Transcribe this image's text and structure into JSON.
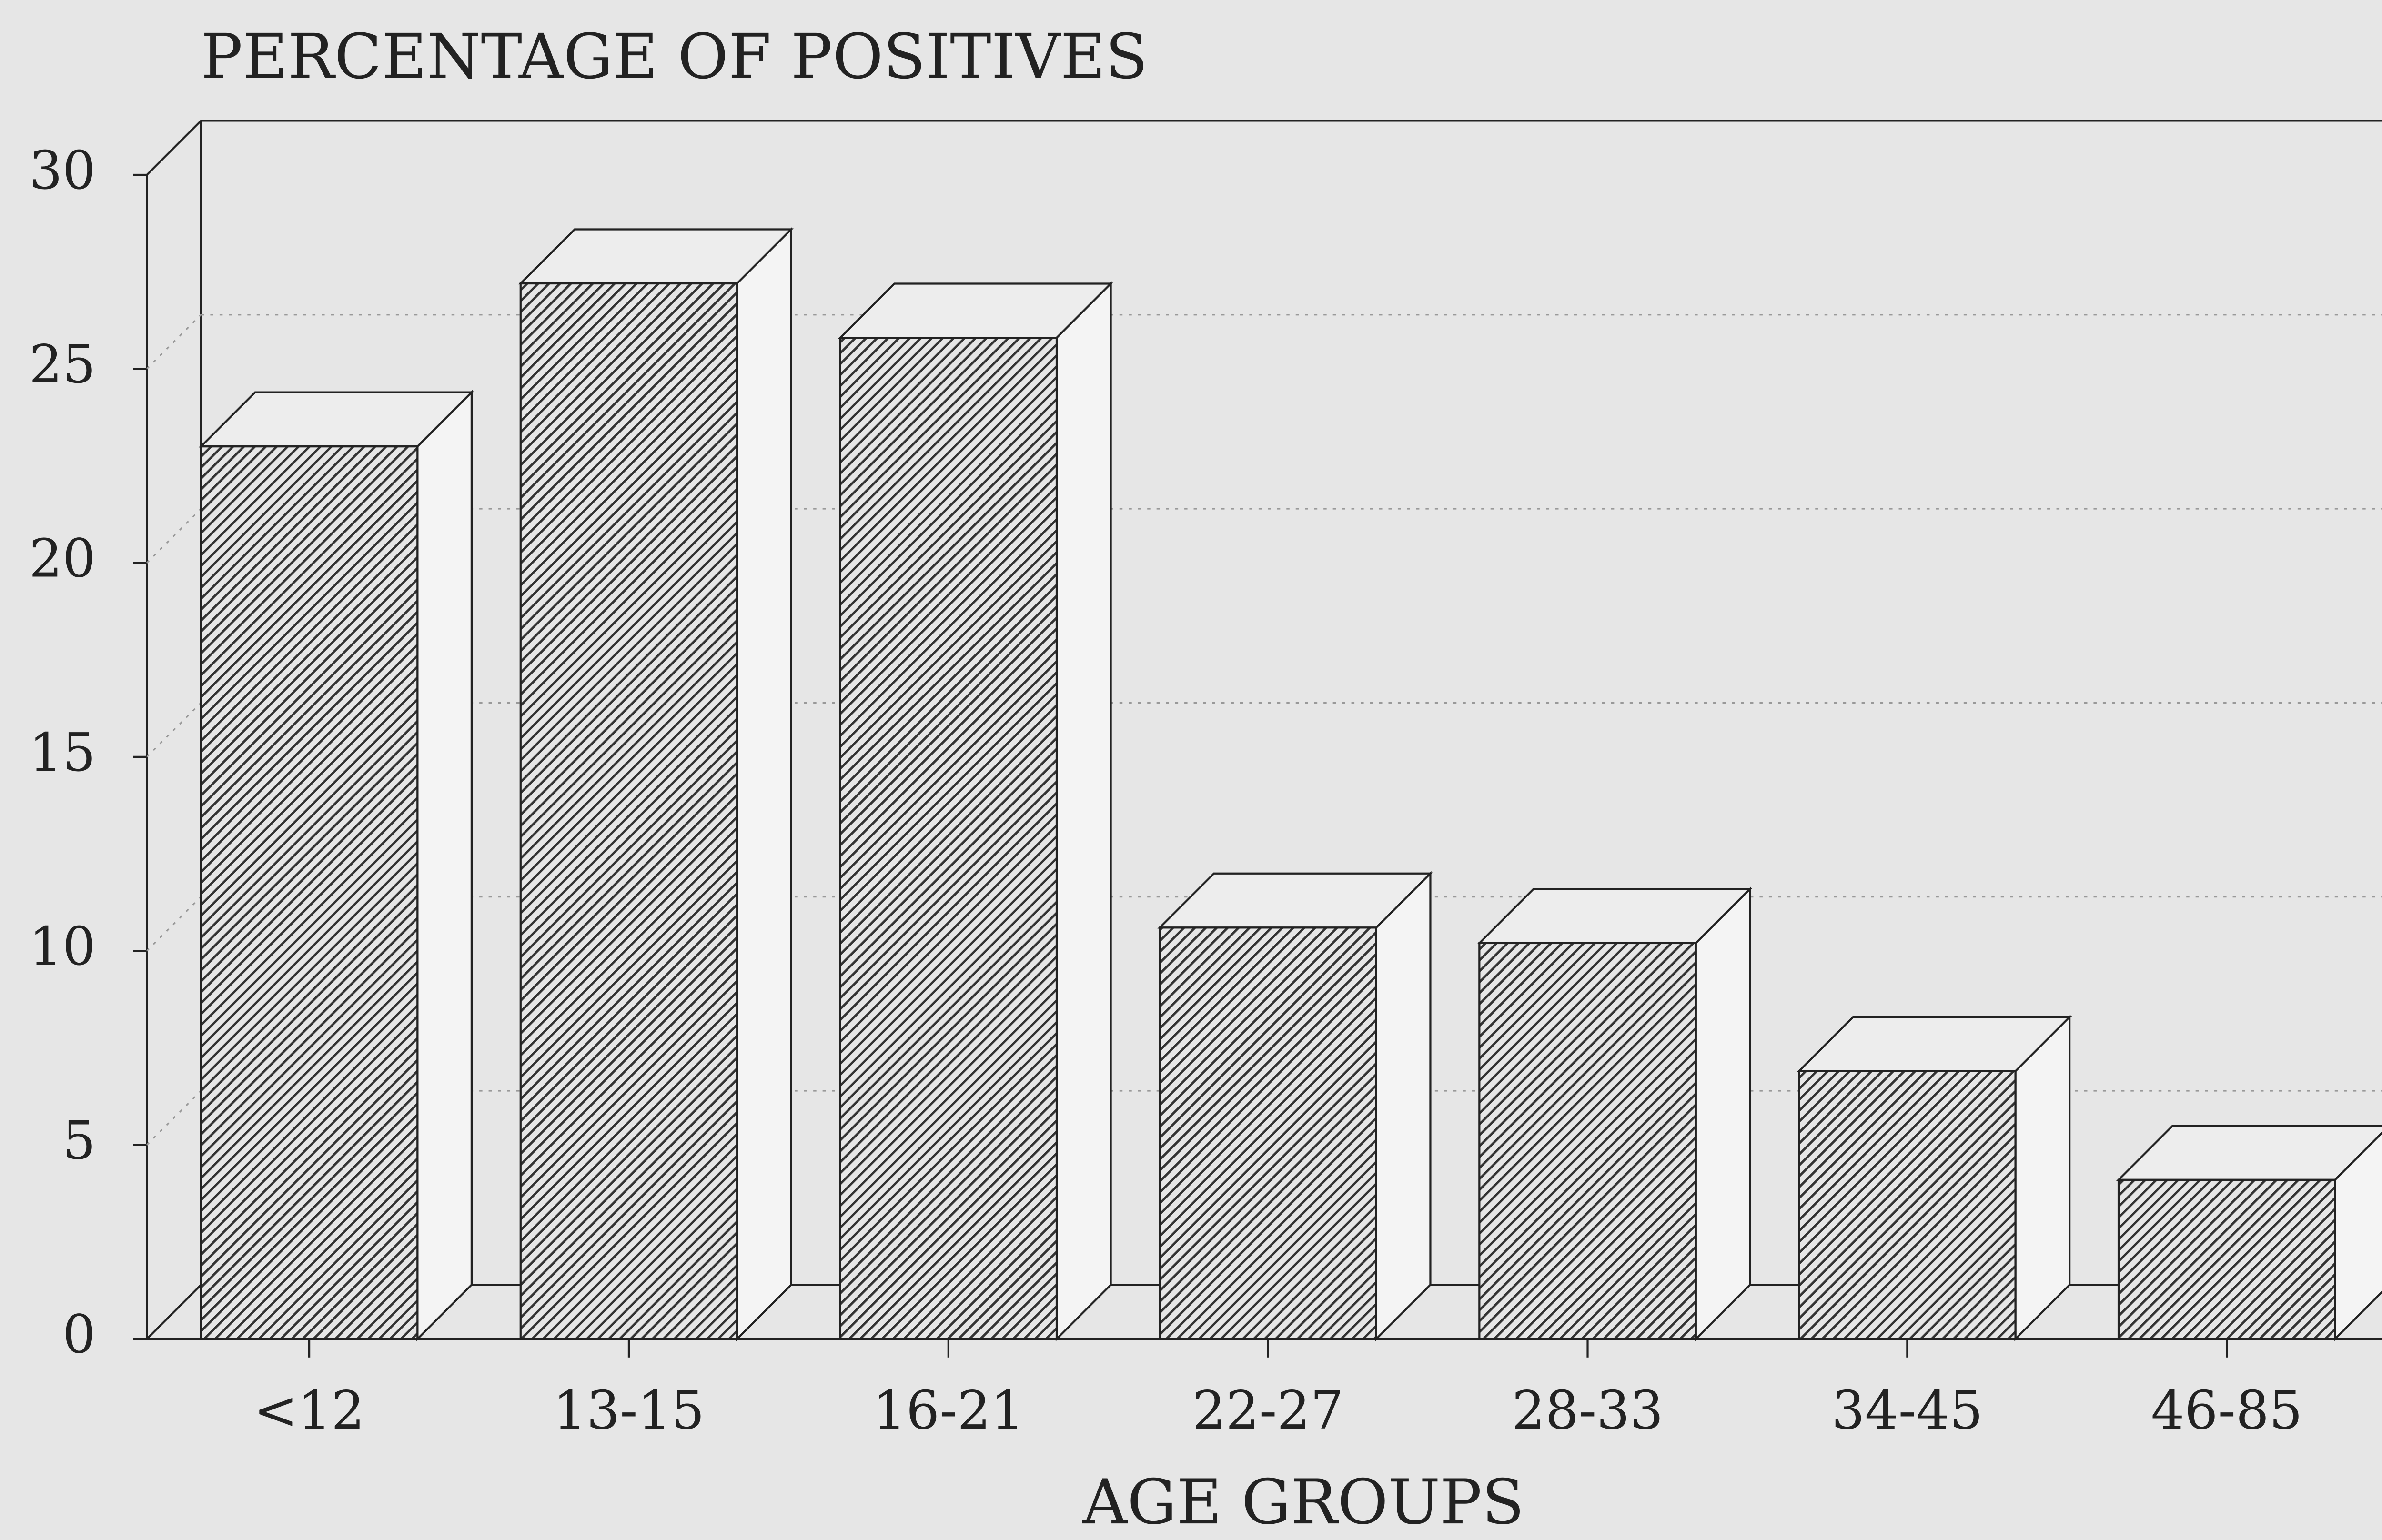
{
  "chart_data": {
    "type": "bar",
    "title": "PERCENTAGE OF POSITIVES",
    "x_label": "AGE GROUPS",
    "categories": [
      "<12",
      "13-15",
      "16-21",
      "22-27",
      "28-33",
      "34-45",
      "46-85"
    ],
    "values": [
      23,
      27.2,
      25.8,
      10.6,
      10.2,
      6.9,
      4.1
    ],
    "color": "#333333",
    "ylim": [
      0,
      30
    ],
    "yticks": [
      0,
      5,
      10,
      15,
      20,
      25,
      30
    ],
    "grid": true
  }
}
